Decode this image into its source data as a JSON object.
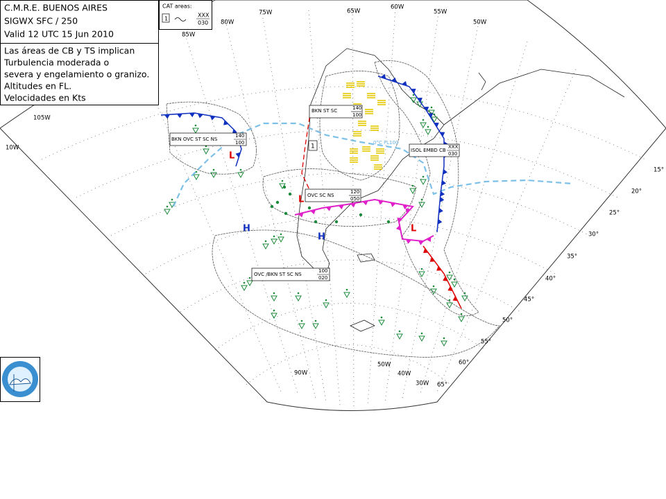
{
  "header": {
    "office": "C.M.R.E. BUENOS AIRES",
    "product": "SIGWX SFC / 250",
    "valid": "Valid 12 UTC 15 Jun 2010"
  },
  "notes": [
    "Las áreas de CB y TS implican",
    "Turbulencia moderada o",
    "severa y engelamiento o granizo.",
    "Altitudes en FL.",
    "Velocidades en Kts"
  ],
  "cat_legend": {
    "title": "CAT areas:",
    "area_number": "1",
    "top": "XXX",
    "base": "030"
  },
  "cat_area_marker": "1",
  "freezing_label": "0°C FL100",
  "cloud_labels": [
    {
      "text": "BKN ST SC",
      "top": "140",
      "base": "100"
    },
    {
      "text": "BKN OVC ST SC NS",
      "top": "140",
      "base": "100"
    },
    {
      "text": "OVC SC NS",
      "top": "120",
      "base": "050"
    },
    {
      "text": "ISOL EMBD CB",
      "top": "XXX",
      "base": "030"
    },
    {
      "text": "OVC /BKN ST SC NS",
      "top": "100",
      "base": "020"
    }
  ],
  "pressure_centers": [
    "L",
    "L",
    "L",
    "H",
    "H"
  ],
  "grid_labels": [
    "75W",
    "80W",
    "85W",
    "65W",
    "60W",
    "55W",
    "50W",
    "105W",
    "10W",
    "15°",
    "20°",
    "25°",
    "30°",
    "35°",
    "40°",
    "45°",
    "50°",
    "55°",
    "60°",
    "65°",
    "90W",
    "50W",
    "40W",
    "30W"
  ]
}
